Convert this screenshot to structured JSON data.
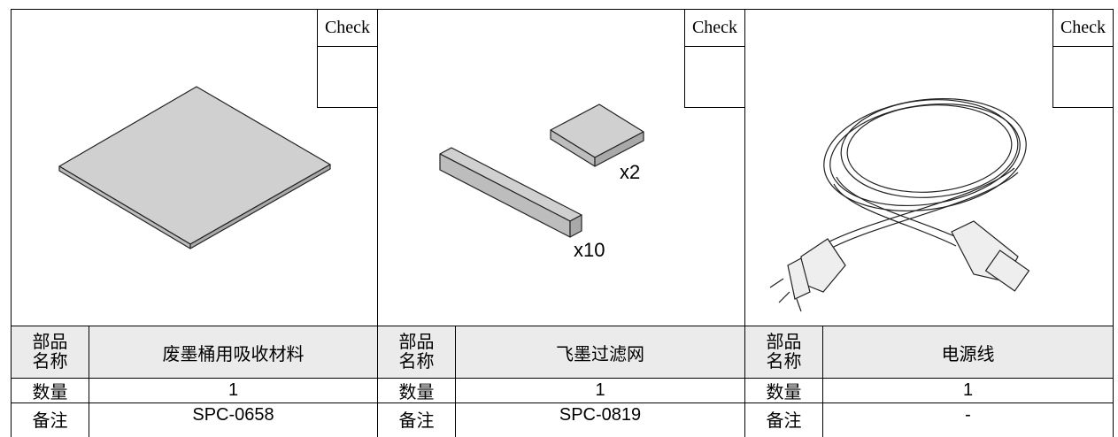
{
  "items": [
    {
      "check": "Check",
      "name_label": "部品名称",
      "name": "废墨桶用吸收材料",
      "qty_label": "数量",
      "qty": 1,
      "note_label": "备注",
      "note": "SPC-0658",
      "annotations": []
    },
    {
      "check": "Check",
      "name_label": "部品名称",
      "name": "飞墨过滤网",
      "qty_label": "数量",
      "qty": 1,
      "note_label": "备注",
      "note": "SPC-0819",
      "annotations": [
        "x2",
        "x10"
      ]
    },
    {
      "check": "Check",
      "name_label": "部品名称",
      "name": "电源线",
      "qty_label": "数量",
      "qty": 1,
      "note_label": "备注",
      "note": "-",
      "annotations": []
    }
  ]
}
